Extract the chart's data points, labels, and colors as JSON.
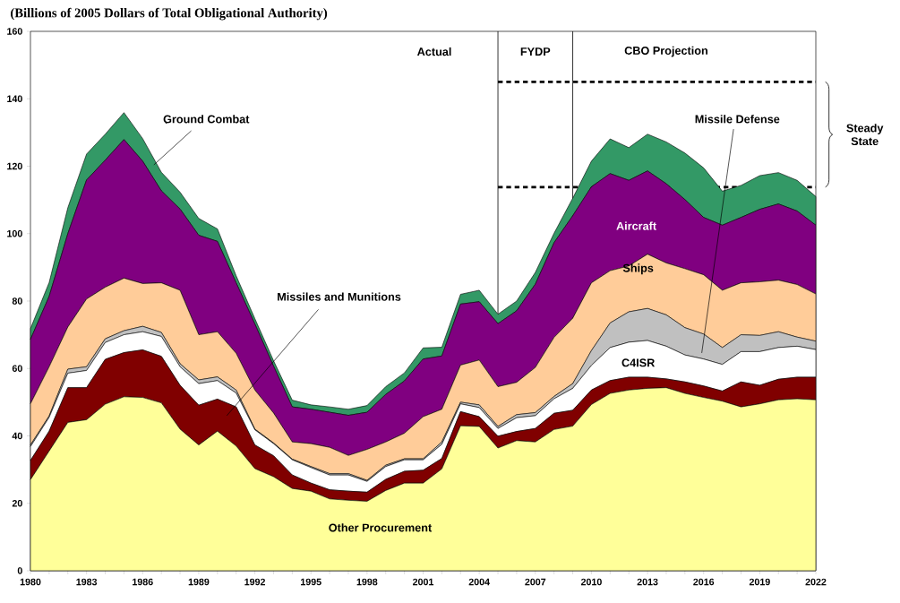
{
  "chart_data": {
    "type": "area",
    "stacked": true,
    "title": "(Billions of 2005 Dollars of Total Obligational Authority)",
    "x": [
      1980,
      1981,
      1982,
      1983,
      1984,
      1985,
      1986,
      1987,
      1988,
      1989,
      1990,
      1991,
      1992,
      1993,
      1994,
      1995,
      1996,
      1997,
      1998,
      1999,
      2000,
      2001,
      2002,
      2003,
      2004,
      2005,
      2006,
      2007,
      2008,
      2009,
      2010,
      2011,
      2012,
      2013,
      2014,
      2015,
      2016,
      2017,
      2018,
      2019,
      2020,
      2021,
      2022
    ],
    "xlim": [
      1980,
      2022
    ],
    "xticks": [
      1980,
      1983,
      1986,
      1989,
      1992,
      1995,
      1998,
      2001,
      2004,
      2007,
      2010,
      2013,
      2016,
      2019,
      2022
    ],
    "ylim": [
      0,
      160
    ],
    "yticks": [
      0,
      20,
      40,
      60,
      80,
      100,
      120,
      140,
      160
    ],
    "series": [
      {
        "name": "Other Procurement",
        "color": "#ffff99",
        "values": [
          27,
          35.5,
          44,
          44.8,
          49.4,
          51.6,
          51.4,
          49.8,
          42,
          37.3,
          41.4,
          37,
          30.3,
          27.9,
          24.4,
          23.6,
          21.3,
          20.9,
          20.6,
          23.8,
          26,
          26,
          30.2,
          43,
          42.8,
          36.4,
          38.6,
          38.2,
          41.9,
          42.9,
          49.3,
          52.6,
          53.6,
          54.1,
          54.3,
          52.6,
          51.4,
          50.3,
          48.6,
          49.5,
          50.7,
          51,
          50.7
        ]
      },
      {
        "name": "Missiles and Munitions",
        "color": "#800000",
        "values": [
          5.7,
          5.9,
          10.3,
          9.5,
          13.3,
          13.1,
          14.1,
          13.8,
          13,
          11.8,
          9.5,
          11.6,
          7,
          6.2,
          4,
          2.4,
          2.7,
          2.7,
          2.7,
          3.3,
          3.5,
          3.8,
          3.1,
          4.2,
          2.9,
          3.5,
          2.7,
          4,
          4.8,
          4.7,
          4.3,
          3.8,
          3.8,
          3.3,
          2.6,
          3.4,
          3.4,
          3,
          7.4,
          5.5,
          6.1,
          6.4,
          6.7
        ]
      },
      {
        "name": "C4ISR",
        "color": "#ffffff",
        "values": [
          4.1,
          4.1,
          4.3,
          5.1,
          5,
          5.3,
          5.4,
          5.9,
          5.5,
          6.4,
          5.5,
          4.1,
          4.5,
          3.6,
          4.5,
          4.6,
          4.4,
          4.8,
          3.2,
          3.8,
          3.4,
          3.1,
          4.2,
          2.3,
          2.7,
          2.3,
          4.1,
          3.8,
          4.3,
          6.5,
          7.3,
          9.8,
          10.4,
          10.9,
          9.7,
          8,
          8,
          7.9,
          9,
          10,
          9.4,
          9.2,
          8.2
        ]
      },
      {
        "name": "Missile Defense",
        "color": "#c0c0c0",
        "values": [
          0.5,
          0.4,
          1.2,
          1.1,
          1.1,
          1.2,
          1.6,
          1.2,
          0.9,
          1.1,
          1.1,
          0.9,
          0.2,
          0.2,
          0.2,
          0.3,
          0.4,
          0.4,
          0.3,
          0.4,
          0.3,
          0.3,
          0.7,
          0.5,
          0.8,
          0.6,
          0.9,
          0.9,
          0.7,
          1.4,
          4.4,
          7.3,
          9,
          9.5,
          9.3,
          8.1,
          7.4,
          5,
          5,
          4.8,
          4.7,
          2.7,
          2.5
        ]
      },
      {
        "name": "Ships",
        "color": "#ffcc99",
        "values": [
          12.2,
          14.6,
          12.5,
          20.1,
          15.3,
          15.6,
          12.7,
          14.7,
          21.8,
          13.4,
          13.4,
          10.9,
          11.6,
          8.9,
          5.1,
          6.8,
          7.8,
          5.4,
          9.2,
          6.9,
          7.6,
          12.5,
          9.7,
          11,
          13.3,
          11.8,
          9.6,
          13.4,
          17.5,
          19.4,
          20.1,
          15.5,
          13.6,
          16.1,
          15.4,
          17.5,
          17.6,
          17,
          15.4,
          15.9,
          15.3,
          15.6,
          14
        ]
      },
      {
        "name": "Aircraft",
        "color": "#800080",
        "values": [
          19.1,
          20.9,
          27.7,
          35.3,
          37.7,
          41.1,
          36.3,
          27.3,
          24.1,
          29.5,
          26.8,
          20.9,
          19.6,
          13.9,
          10.4,
          10.2,
          10.4,
          11.9,
          11,
          14.1,
          15.5,
          17.1,
          15.8,
          18.1,
          17.3,
          18.7,
          21.2,
          24.7,
          28.1,
          30.4,
          28.5,
          28.8,
          25.4,
          24.7,
          23.5,
          20.5,
          17,
          19.3,
          19.4,
          21.5,
          22.6,
          21.8,
          20.4
        ]
      },
      {
        "name": "Ground Combat",
        "color": "#339966",
        "values": [
          3.2,
          4.1,
          7.7,
          7.7,
          7.7,
          8,
          6.7,
          5.5,
          5,
          5,
          3.7,
          2.1,
          1.6,
          1.6,
          2,
          1.3,
          1.6,
          1.8,
          2,
          2.3,
          2.4,
          3.3,
          2.6,
          2.9,
          3.4,
          2.8,
          2.9,
          3.5,
          2.8,
          5.2,
          7.6,
          10.3,
          9.7,
          10.9,
          12.4,
          13.8,
          14.7,
          10.1,
          9.5,
          10,
          9.3,
          9.1,
          8.5
        ]
      }
    ],
    "ref_lines": [
      {
        "axis": "x",
        "value": 2005
      },
      {
        "axis": "x",
        "value": 2009
      },
      {
        "axis": "y",
        "value": 145,
        "line_style": "dashed"
      },
      {
        "axis": "y",
        "value": 113.8,
        "line_style": "dashed"
      }
    ],
    "annotations": [
      "Actual",
      "FYDP",
      "CBO Projection",
      "Steady State"
    ]
  }
}
